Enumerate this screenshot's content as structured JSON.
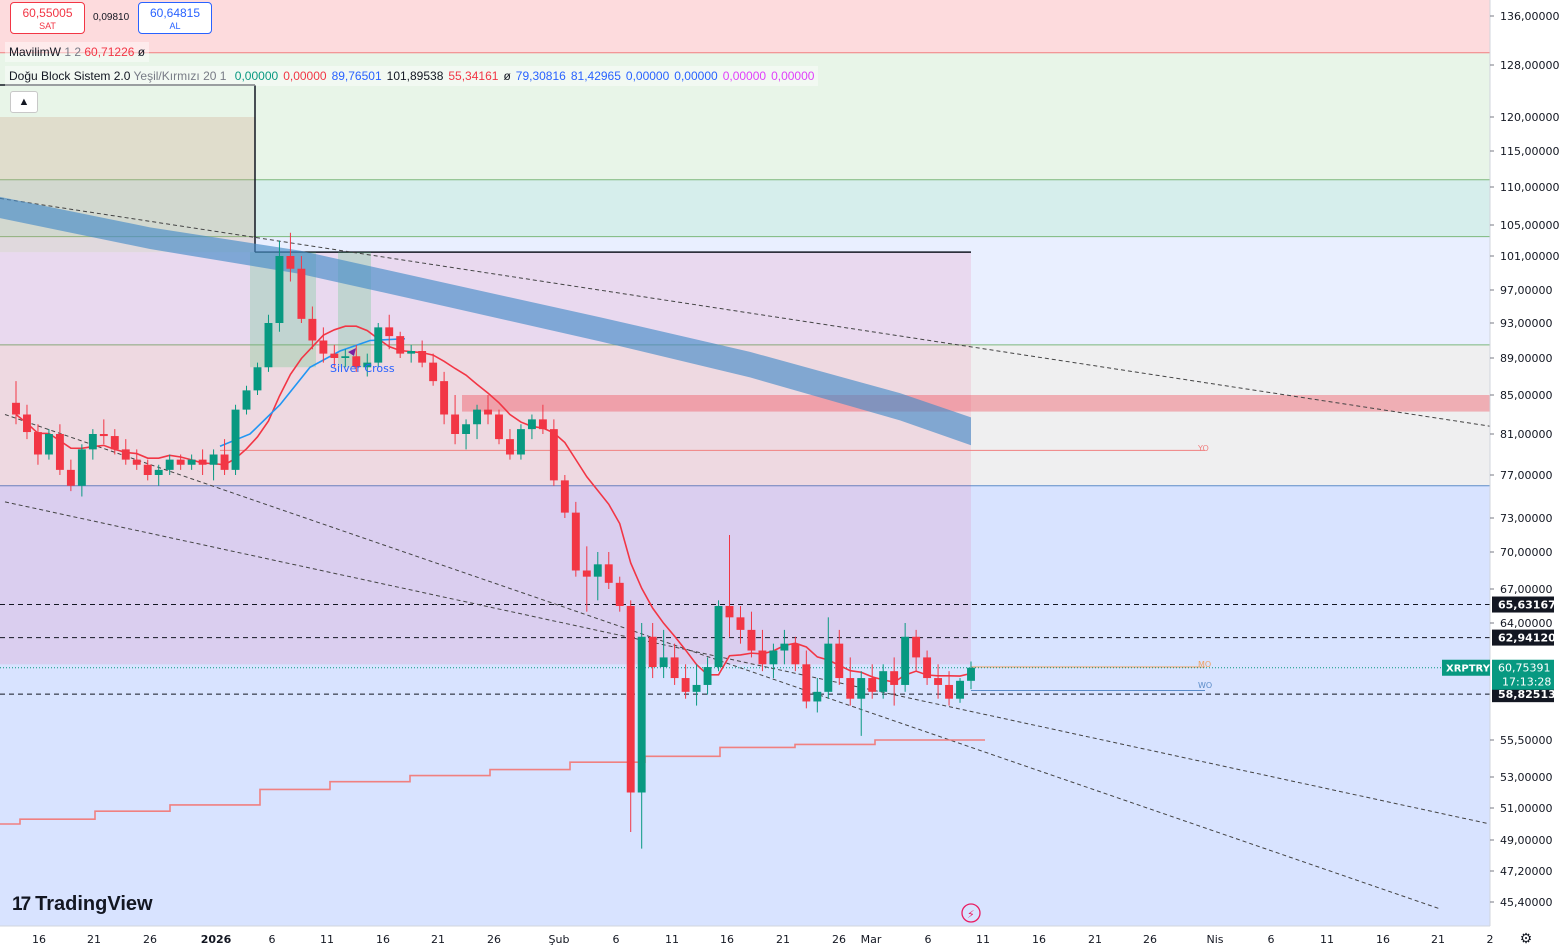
{
  "trade": {
    "sell_price": "60,55005",
    "sell_label": "SAT",
    "spread": "0,09810",
    "buy_price": "60,64815",
    "buy_label": "AL"
  },
  "legend": {
    "row1": {
      "name": "MavilimW",
      "params": "1 2",
      "value": "60,71226",
      "extra": "ø"
    },
    "row2": {
      "name": "Doğu Block Sistem 2.0",
      "params": "Yeşil/Kırmızı 20 1",
      "values": [
        {
          "text": "0,00000",
          "color": "#089981"
        },
        {
          "text": "0,00000",
          "color": "#f23645"
        },
        {
          "text": "89,76501",
          "color": "#2962ff"
        },
        {
          "text": "101,89538",
          "color": "#131722"
        },
        {
          "text": "55,34161",
          "color": "#f23645"
        },
        {
          "text": "ø",
          "color": "#131722"
        },
        {
          "text": "79,30816",
          "color": "#2962ff"
        },
        {
          "text": "81,42965",
          "color": "#2962ff"
        },
        {
          "text": "0,00000",
          "color": "#2962ff"
        },
        {
          "text": "0,00000",
          "color": "#2962ff"
        },
        {
          "text": "0,00000",
          "color": "#e040fb"
        },
        {
          "text": "0,00000",
          "color": "#e040fb"
        }
      ]
    },
    "collapse_icon": "chevron-up-icon"
  },
  "brand": {
    "logo_text": "TradingView",
    "logo_icon": "tradingview-logo-icon"
  },
  "chart_data": {
    "type": "candlestick",
    "symbol": "XRPTRY",
    "last_price": "60,75391",
    "countdown": "17:13:28",
    "y_tick_labels": [
      "136,00000",
      "128,00000",
      "120,00000",
      "115,00000",
      "110,00000",
      "105,00000",
      "101,00000",
      "97,00000",
      "93,00000",
      "89,00000",
      "85,00000",
      "81,00000",
      "77,00000",
      "73,00000",
      "70,00000",
      "67,00000",
      "64,00000",
      "55,50000",
      "53,00000",
      "51,00000",
      "49,00000",
      "47,20000",
      "45,40000"
    ],
    "y_ticks_numeric": [
      136,
      128,
      120,
      115,
      110,
      105,
      101,
      97,
      93,
      89,
      85,
      81,
      77,
      73,
      70,
      67,
      64,
      55.5,
      53,
      51,
      49,
      47.2,
      45.4
    ],
    "price_markers": [
      {
        "label": "65,63167",
        "value": 65.63
      },
      {
        "label": "62,94120",
        "value": 62.94
      },
      {
        "label": "58,82513",
        "value": 58.83
      }
    ],
    "x_tick_labels": [
      "16",
      "21",
      "26",
      "2026",
      "6",
      "11",
      "16",
      "21",
      "26",
      "Şub",
      "6",
      "11",
      "16",
      "21",
      "26",
      "Mar",
      "6",
      "11",
      "16",
      "21",
      "26",
      "Nis",
      "6",
      "11",
      "16",
      "21",
      "2"
    ],
    "annotations": [
      {
        "text": "Silver Cross",
        "color": "#2962ff"
      },
      {
        "text": "YO",
        "color": "#f08080"
      },
      {
        "text": "MO",
        "color": "#f0a060"
      },
      {
        "text": "WO",
        "color": "#5b8cc9"
      }
    ],
    "ohlc": [
      [
        84.2,
        86.5,
        82.0,
        83.0
      ],
      [
        83.0,
        84.0,
        80.5,
        81.2
      ],
      [
        81.2,
        82.0,
        78.0,
        79.0
      ],
      [
        79.0,
        81.5,
        78.5,
        81.0
      ],
      [
        81.0,
        82.0,
        77.0,
        77.5
      ],
      [
        77.5,
        78.5,
        75.5,
        76.0
      ],
      [
        76.0,
        80.0,
        75.0,
        79.5
      ],
      [
        79.5,
        81.5,
        78.5,
        81.0
      ],
      [
        81.0,
        82.5,
        80.0,
        80.8
      ],
      [
        80.8,
        81.5,
        79.0,
        79.5
      ],
      [
        79.5,
        80.5,
        78.0,
        78.5
      ],
      [
        78.5,
        79.5,
        77.5,
        78.0
      ],
      [
        78.0,
        78.5,
        76.5,
        77.0
      ],
      [
        77.0,
        78.0,
        76.0,
        77.5
      ],
      [
        77.5,
        79.0,
        77.0,
        78.5
      ],
      [
        78.5,
        79.0,
        77.5,
        78.0
      ],
      [
        78.0,
        79.0,
        77.5,
        78.5
      ],
      [
        78.5,
        79.5,
        77.0,
        78.0
      ],
      [
        78.0,
        79.5,
        76.5,
        79.0
      ],
      [
        79.0,
        80.5,
        77.0,
        77.5
      ],
      [
        77.5,
        84.0,
        77.0,
        83.5
      ],
      [
        83.5,
        86.0,
        83.0,
        85.5
      ],
      [
        85.5,
        88.5,
        85.0,
        88.0
      ],
      [
        88.0,
        94.0,
        87.5,
        93.0
      ],
      [
        93.0,
        103.0,
        92.0,
        101.0
      ],
      [
        101.0,
        104.0,
        98.0,
        99.5
      ],
      [
        99.5,
        101.0,
        93.0,
        93.5
      ],
      [
        93.5,
        95.0,
        90.0,
        91.0
      ],
      [
        91.0,
        92.5,
        88.5,
        89.5
      ],
      [
        89.5,
        90.5,
        88.0,
        89.0
      ],
      [
        89.0,
        90.0,
        88.0,
        89.2
      ],
      [
        89.2,
        90.5,
        87.5,
        88.0
      ],
      [
        88.0,
        89.5,
        87.0,
        88.5
      ],
      [
        88.5,
        93.0,
        88.0,
        92.5
      ],
      [
        92.5,
        94.0,
        90.0,
        91.5
      ],
      [
        91.5,
        92.0,
        89.0,
        89.5
      ],
      [
        89.5,
        90.5,
        88.5,
        89.8
      ],
      [
        89.8,
        91.0,
        88.0,
        88.5
      ],
      [
        88.5,
        89.5,
        86.0,
        86.5
      ],
      [
        86.5,
        87.5,
        82.0,
        83.0
      ],
      [
        83.0,
        85.0,
        80.0,
        81.0
      ],
      [
        81.0,
        82.5,
        79.5,
        82.0
      ],
      [
        82.0,
        84.0,
        80.5,
        83.5
      ],
      [
        83.5,
        85.0,
        82.0,
        83.0
      ],
      [
        83.0,
        83.5,
        80.0,
        80.5
      ],
      [
        80.5,
        81.5,
        78.5,
        79.0
      ],
      [
        79.0,
        82.0,
        78.5,
        81.5
      ],
      [
        81.5,
        83.0,
        80.5,
        82.5
      ],
      [
        82.5,
        84.0,
        81.0,
        81.5
      ],
      [
        81.5,
        82.5,
        76.0,
        76.5
      ],
      [
        76.5,
        77.0,
        73.0,
        73.5
      ],
      [
        73.5,
        74.5,
        68.0,
        68.5
      ],
      [
        68.5,
        70.5,
        65.0,
        68.0
      ],
      [
        68.0,
        70.0,
        66.0,
        69.0
      ],
      [
        69.0,
        70.0,
        67.0,
        67.5
      ],
      [
        67.5,
        68.0,
        65.0,
        65.5
      ],
      [
        65.5,
        66.0,
        49.5,
        52.0
      ],
      [
        52.0,
        64.0,
        48.5,
        63.0
      ],
      [
        63.0,
        64.0,
        60.0,
        60.8
      ],
      [
        60.8,
        63.5,
        60.0,
        61.5
      ],
      [
        61.5,
        62.5,
        59.5,
        60.0
      ],
      [
        60.0,
        61.0,
        58.5,
        59.0
      ],
      [
        59.0,
        61.0,
        58.0,
        59.5
      ],
      [
        59.5,
        61.5,
        58.8,
        60.8
      ],
      [
        60.8,
        66.0,
        60.5,
        65.5
      ],
      [
        65.5,
        71.5,
        63.0,
        64.5
      ],
      [
        64.5,
        65.5,
        62.5,
        63.5
      ],
      [
        63.5,
        65.0,
        61.5,
        62.0
      ],
      [
        62.0,
        63.5,
        60.5,
        61.0
      ],
      [
        61.0,
        62.5,
        60.0,
        62.0
      ],
      [
        62.0,
        63.5,
        61.0,
        62.5
      ],
      [
        62.5,
        63.0,
        60.5,
        61.0
      ],
      [
        61.0,
        62.0,
        57.8,
        58.3
      ],
      [
        58.3,
        60.0,
        57.5,
        59.0
      ],
      [
        59.0,
        64.5,
        58.5,
        62.5
      ],
      [
        62.5,
        63.5,
        59.5,
        60.0
      ],
      [
        60.0,
        61.5,
        58.0,
        58.5
      ],
      [
        58.5,
        60.5,
        55.8,
        60.0
      ],
      [
        60.0,
        61.0,
        58.5,
        59.0
      ],
      [
        59.0,
        61.0,
        58.5,
        60.5
      ],
      [
        60.5,
        61.5,
        58.0,
        59.5
      ],
      [
        59.5,
        64.0,
        59.0,
        63.0
      ],
      [
        63.0,
        63.5,
        60.5,
        61.5
      ],
      [
        61.5,
        62.0,
        59.5,
        60.0
      ],
      [
        60.0,
        61.0,
        58.5,
        59.5
      ],
      [
        59.5,
        60.5,
        58.0,
        58.5
      ],
      [
        58.5,
        60.0,
        58.2,
        59.8
      ],
      [
        59.8,
        61.2,
        59.2,
        60.75
      ]
    ]
  }
}
